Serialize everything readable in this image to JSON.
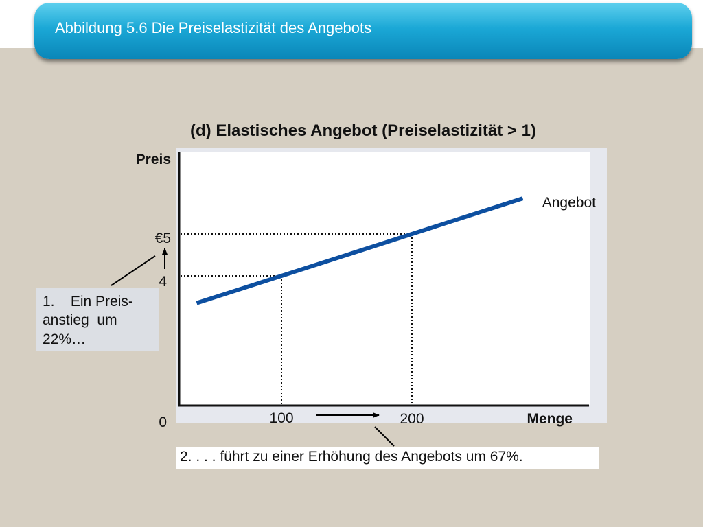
{
  "header": {
    "title": "Abbildung 5.6 Die Preiselastizität des Angebots"
  },
  "chart_data": {
    "type": "line",
    "title": "(d) Elastisches Angebot (Preiselastizität > 1)",
    "ylabel": "Preis",
    "xlabel": "Menge",
    "origin_label": "0",
    "x_ticks": [
      "100",
      "200"
    ],
    "y_ticks": [
      "4",
      "€5"
    ],
    "series": [
      {
        "name": "Angebot",
        "color": "#0d4fa0",
        "x": [
          100,
          200
        ],
        "y": [
          4,
          5
        ]
      }
    ],
    "reference_points": [
      {
        "x": 100,
        "y": 4
      },
      {
        "x": 200,
        "y": 5
      }
    ],
    "legend": "line-end label"
  },
  "annotations": {
    "note1_lines": [
      "1.    Ein Preis-",
      "anstieg  um",
      "22%…"
    ],
    "note2": "2. . . . führt zu einer Erhöhung des Angebots um 67%."
  }
}
